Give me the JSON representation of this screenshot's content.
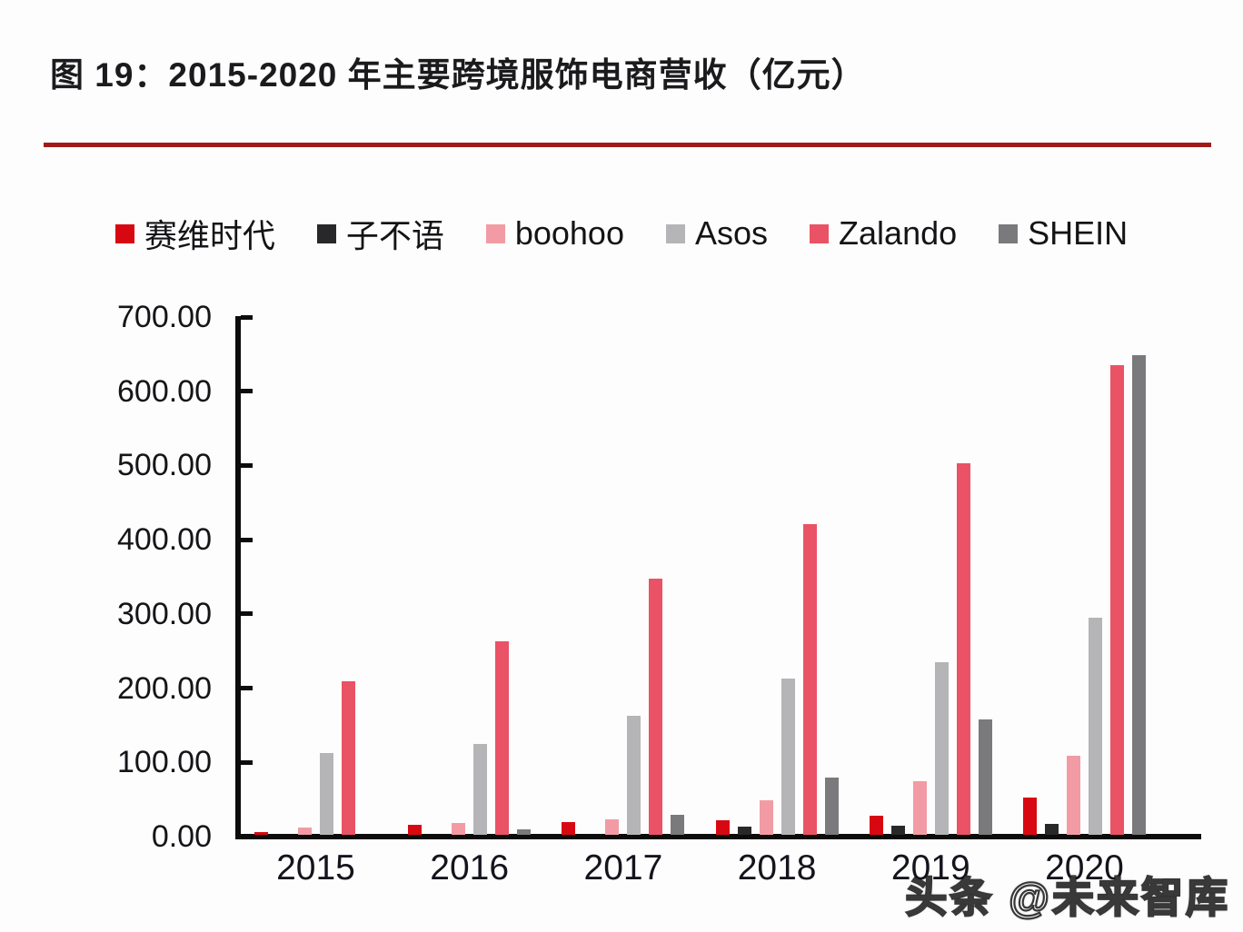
{
  "title": "图 19：2015-2020 年主要跨境服饰电商营收（亿元）",
  "watermark": "头条 @未来智库",
  "accent_line_color": "#a11a1a",
  "axis_color": "#0c0c0c",
  "chart_data": {
    "type": "bar",
    "title": "2015-2020 年主要跨境服饰电商营收（亿元）",
    "categories": [
      "2015",
      "2016",
      "2017",
      "2018",
      "2019",
      "2020"
    ],
    "series": [
      {
        "name": "赛维时代",
        "color": "#d80812",
        "values": [
          4,
          14,
          17,
          20,
          26,
          50
        ]
      },
      {
        "name": "子不语",
        "color": "#28282a",
        "values": [
          0,
          0,
          0,
          11,
          12,
          15
        ]
      },
      {
        "name": "boohoo",
        "color": "#f29ba4",
        "values": [
          10,
          16,
          21,
          47,
          72,
          107
        ]
      },
      {
        "name": "Asos",
        "color": "#b5b5b7",
        "values": [
          110,
          122,
          160,
          210,
          232,
          293
        ]
      },
      {
        "name": "Zalando",
        "color": "#ea5266",
        "values": [
          207,
          261,
          345,
          418,
          500,
          633
        ]
      },
      {
        "name": "SHEIN",
        "color": "#7a7a7c",
        "values": [
          0,
          7,
          27,
          77,
          156,
          646
        ]
      }
    ],
    "xlabel": "",
    "ylabel": "",
    "ylim": [
      0,
      700
    ],
    "ytick_step": 100,
    "ytick_labels": [
      "0.00",
      "100.00",
      "200.00",
      "300.00",
      "400.00",
      "500.00",
      "600.00",
      "700.00"
    ],
    "grid": false,
    "legend_position": "top"
  }
}
